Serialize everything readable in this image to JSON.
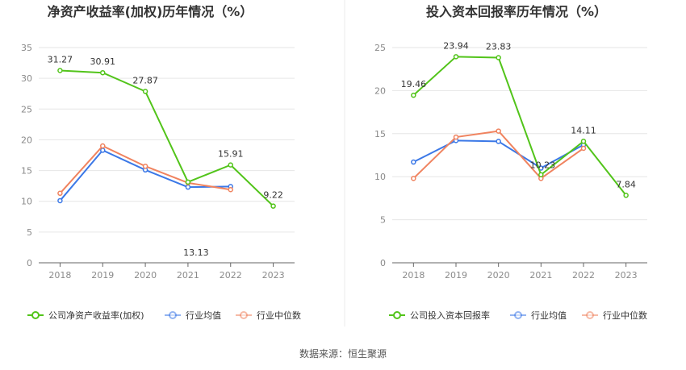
{
  "chart_data": [
    {
      "type": "line",
      "title": "净资产收益率(加权)历年情况（%）",
      "categories": [
        "2018",
        "2019",
        "2020",
        "2021",
        "2022",
        "2023"
      ],
      "ylim": [
        0,
        35
      ],
      "yticks": [
        0,
        5,
        10,
        15,
        20,
        25,
        30,
        35
      ],
      "grid": true,
      "legend_placement": "bottom",
      "series": [
        {
          "name": "公司净资产收益率(加权)",
          "color": "#52c41a",
          "values": [
            31.27,
            30.91,
            27.87,
            13.13,
            15.91,
            9.22
          ],
          "labels": [
            "31.27",
            "30.91",
            "27.87",
            "13.13",
            "15.91",
            "9.22"
          ]
        },
        {
          "name": "行业均值",
          "color": "#3b78e7",
          "values": [
            10.1,
            18.3,
            15.1,
            12.3,
            12.4,
            null
          ]
        },
        {
          "name": "行业中位数",
          "color": "#f0835f",
          "values": [
            11.3,
            19.0,
            15.7,
            13.0,
            11.9,
            null
          ]
        }
      ]
    },
    {
      "type": "line",
      "title": "投入资本回报率历年情况（%）",
      "categories": [
        "2018",
        "2019",
        "2020",
        "2021",
        "2022",
        "2023"
      ],
      "ylim": [
        0,
        25
      ],
      "yticks": [
        0,
        5,
        10,
        15,
        20,
        25
      ],
      "grid": true,
      "legend_placement": "bottom",
      "series": [
        {
          "name": "公司投入资本回报率",
          "color": "#52c41a",
          "values": [
            19.46,
            23.94,
            23.83,
            10.23,
            14.11,
            7.84
          ],
          "labels": [
            "19.46",
            "23.94",
            "23.83",
            "10.23",
            "14.11",
            "7.84"
          ]
        },
        {
          "name": "行业均值",
          "color": "#3b78e7",
          "values": [
            11.7,
            14.2,
            14.1,
            11.0,
            13.7,
            null
          ]
        },
        {
          "name": "行业中位数",
          "color": "#f0835f",
          "values": [
            9.8,
            14.6,
            15.3,
            9.8,
            13.3,
            null
          ]
        }
      ]
    }
  ],
  "source": "数据来源：恒生聚源"
}
